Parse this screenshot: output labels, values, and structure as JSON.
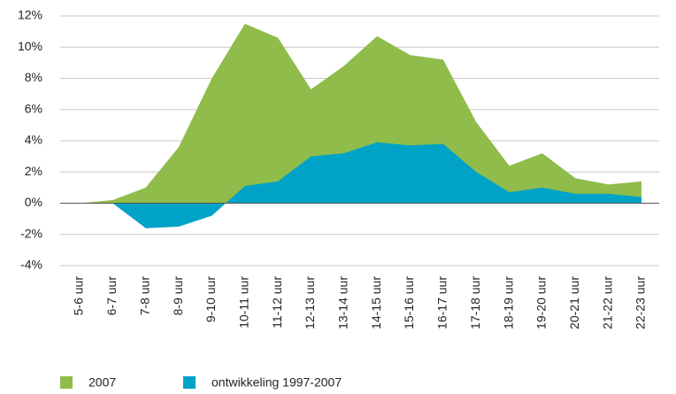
{
  "chart_data": {
    "type": "area",
    "categories": [
      "5-6 uur",
      "6-7 uur",
      "7-8 uur",
      "8-9 uur",
      "9-10 uur",
      "10-11 uur",
      "11-12 uur",
      "12-13 uur",
      "13-14 uur",
      "14-15 uur",
      "15-16 uur",
      "16-17 uur",
      "17-18 uur",
      "18-19 uur",
      "19-20 uur",
      "20-21 uur",
      "21-22 uur",
      "22-23 uur"
    ],
    "series": [
      {
        "name": "2007",
        "color": "#8fbc4a",
        "values": [
          0.0,
          0.2,
          1.0,
          3.6,
          8.0,
          11.5,
          10.6,
          7.3,
          8.8,
          10.7,
          9.5,
          9.2,
          5.2,
          2.4,
          3.2,
          1.6,
          1.2,
          1.4
        ]
      },
      {
        "name": "ontwikkeling 1997-2007",
        "color": "#00a3c7",
        "values": [
          0.0,
          0.0,
          -1.6,
          -1.5,
          -0.8,
          1.1,
          1.4,
          3.0,
          3.2,
          3.9,
          3.7,
          3.8,
          2.0,
          0.7,
          1.0,
          0.6,
          0.6,
          0.4
        ]
      }
    ],
    "ylim": [
      -4,
      12
    ],
    "yticks": [
      {
        "value": -4,
        "label": "-4%"
      },
      {
        "value": -2,
        "label": "-2%"
      },
      {
        "value": 0,
        "label": "0%"
      },
      {
        "value": 2,
        "label": "2%"
      },
      {
        "value": 4,
        "label": "4%"
      },
      {
        "value": 6,
        "label": "6%"
      },
      {
        "value": 8,
        "label": "8%"
      },
      {
        "value": 10,
        "label": "10%"
      },
      {
        "value": 12,
        "label": "12%"
      }
    ],
    "grid": true
  }
}
